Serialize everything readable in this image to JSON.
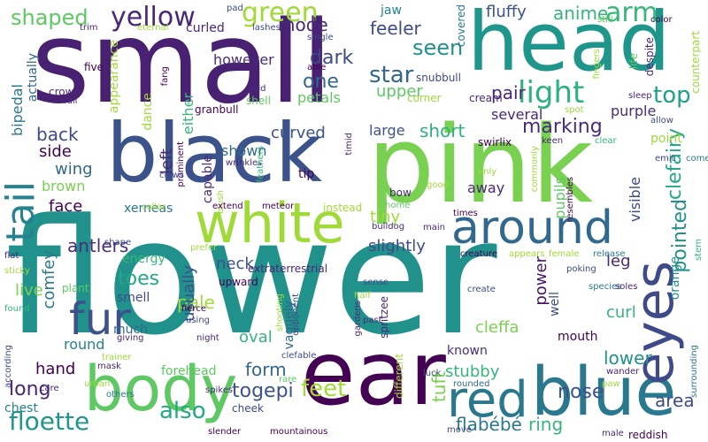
{
  "words": [
    {
      "text": "flower",
      "color": "#21918c"
    },
    {
      "text": "small",
      "color": "#482173"
    },
    {
      "text": "pink",
      "color": "#7ad151"
    },
    {
      "text": "black",
      "color": "#3b528b"
    },
    {
      "text": "head",
      "color": "#1f968b"
    },
    {
      "text": "ear",
      "color": "#440154"
    },
    {
      "text": "body",
      "color": "#5ec962"
    },
    {
      "text": "blue",
      "color": "#2a788e"
    },
    {
      "text": "white",
      "color": "#a0da39"
    },
    {
      "text": "around",
      "color": "#31688e"
    },
    {
      "text": "red",
      "color": "#2a788e"
    },
    {
      "text": "eyes",
      "color": "#3e4a89"
    },
    {
      "text": "fur",
      "color": "#3b528b"
    },
    {
      "text": "tail",
      "color": "#26828e"
    },
    {
      "text": "yellow",
      "color": "#482878"
    },
    {
      "text": "green",
      "color": "#a0da39"
    },
    {
      "text": "arm",
      "color": "#35b779"
    },
    {
      "text": "light",
      "color": "#2db27d"
    },
    {
      "text": "shaped",
      "color": "#5ec962"
    },
    {
      "text": "anime",
      "color": "#35b779"
    },
    {
      "text": "fluffy",
      "color": "#3b528b"
    },
    {
      "text": "top",
      "color": "#1fa187"
    },
    {
      "text": "mode",
      "color": "#482878"
    },
    {
      "text": "dark",
      "color": "#3e4a89"
    },
    {
      "text": "star",
      "color": "#31688e"
    },
    {
      "text": "seen",
      "color": "#21918c"
    },
    {
      "text": "feeler",
      "color": "#3e4a89"
    },
    {
      "text": "one",
      "color": "#31688e"
    },
    {
      "text": "upper",
      "color": "#5ec962"
    },
    {
      "text": "petals",
      "color": "#5ec962"
    },
    {
      "text": "marking",
      "color": "#472d7b"
    },
    {
      "text": "pair",
      "color": "#482878"
    },
    {
      "text": "clefairy",
      "color": "#22a884"
    },
    {
      "text": "pointed",
      "color": "#21918c"
    },
    {
      "text": "back",
      "color": "#3e4a89"
    },
    {
      "text": "curved",
      "color": "#3b528b"
    },
    {
      "text": "short",
      "color": "#2db27d"
    },
    {
      "text": "side",
      "color": "#440154"
    },
    {
      "text": "wing",
      "color": "#31688e"
    },
    {
      "text": "left",
      "color": "#482878"
    },
    {
      "text": "tip",
      "color": "#440154"
    },
    {
      "text": "face",
      "color": "#440154"
    },
    {
      "text": "xerneas",
      "color": "#2a788e"
    },
    {
      "text": "bipedal",
      "color": "#2a788e"
    },
    {
      "text": "antlers",
      "color": "#472d7b"
    },
    {
      "text": "slightly",
      "color": "#3e4a89"
    },
    {
      "text": "energy",
      "color": "#35b779"
    },
    {
      "text": "tiny",
      "color": "#a0da39"
    },
    {
      "text": "neck",
      "color": "#3b528b"
    },
    {
      "text": "toes",
      "color": "#22a884"
    },
    {
      "text": "comfey",
      "color": "#2a788e"
    },
    {
      "text": "power",
      "color": "#481467"
    },
    {
      "text": "cleffa",
      "color": "#7ad151"
    },
    {
      "text": "leg",
      "color": "#482878"
    },
    {
      "text": "orange",
      "color": "#21918c"
    },
    {
      "text": "pale",
      "color": "#a0da39"
    },
    {
      "text": "usually",
      "color": "#3b528b"
    },
    {
      "text": "vaguely",
      "color": "#31688e"
    },
    {
      "text": "smell",
      "color": "#3e4a89"
    },
    {
      "text": "hand",
      "color": "#440154"
    },
    {
      "text": "round",
      "color": "#26828e"
    },
    {
      "text": "oval",
      "color": "#35b779"
    },
    {
      "text": "mouth",
      "color": "#440154"
    },
    {
      "text": "lower",
      "color": "#21918c"
    },
    {
      "text": "long",
      "color": "#482878"
    },
    {
      "text": "forehead",
      "color": "#5ec962"
    },
    {
      "text": "form",
      "color": "#31688e"
    },
    {
      "text": "stubby",
      "color": "#35b779"
    },
    {
      "text": "togepi",
      "color": "#3b528b"
    },
    {
      "text": "feet",
      "color": "#a0da39"
    },
    {
      "text": "also",
      "color": "#22a884"
    },
    {
      "text": "floette",
      "color": "#1f968b"
    },
    {
      "text": "chest",
      "color": "#26828e"
    },
    {
      "text": "tuft",
      "color": "#7ad151"
    },
    {
      "text": "nose",
      "color": "#3b528b"
    },
    {
      "text": "ring",
      "color": "#35b779"
    },
    {
      "text": "flabébé",
      "color": "#2a788e"
    },
    {
      "text": "area",
      "color": "#3e4a89"
    },
    {
      "text": "brown",
      "color": "#7ad151"
    },
    {
      "text": "large",
      "color": "#3b528b"
    },
    {
      "text": "several",
      "color": "#482878"
    },
    {
      "text": "purple",
      "color": "#472d7b"
    },
    {
      "text": "visible",
      "color": "#3e4a89"
    },
    {
      "text": "pupils",
      "color": "#5ec962"
    },
    {
      "text": "live",
      "color": "#7ad151"
    },
    {
      "text": "away",
      "color": "#482878"
    },
    {
      "text": "curl",
      "color": "#35b779"
    },
    {
      "text": "point",
      "color": "#a0da39"
    },
    {
      "text": "shown",
      "color": "#31688e"
    },
    {
      "text": "capable",
      "color": "#472d7b"
    },
    {
      "text": "dance",
      "color": "#a0da39"
    },
    {
      "text": "either",
      "color": "#35b779"
    },
    {
      "text": "however",
      "color": "#472d7b"
    },
    {
      "text": "curled",
      "color": "#482878"
    },
    {
      "text": "actually",
      "color": "#31688e"
    },
    {
      "text": "appearance",
      "color": "#a0da39"
    },
    {
      "text": "jaw",
      "color": "#26828e"
    },
    {
      "text": "covered",
      "color": "#2a788e"
    },
    {
      "text": "much",
      "color": "#31688e"
    },
    {
      "text": "well",
      "color": "#3e4a89"
    },
    {
      "text": "known",
      "color": "#472d7b"
    },
    {
      "text": "cheek",
      "color": "#3e4a89"
    },
    {
      "text": "upward",
      "color": "#440154"
    },
    {
      "text": "extraterrestrial",
      "color": "#482878"
    },
    {
      "text": "spritzee",
      "color": "#482878"
    },
    {
      "text": "plant",
      "color": "#5ec962"
    },
    {
      "text": "shape",
      "color": "#3e4a89"
    },
    {
      "text": "mask",
      "color": "#482878"
    },
    {
      "text": "flat",
      "color": "#472d7b"
    },
    {
      "text": "sticky",
      "color": "#a0da39"
    },
    {
      "text": "found",
      "color": "#35b779"
    },
    {
      "text": "according",
      "color": "#3e4a89"
    },
    {
      "text": "trainer",
      "color": "#a0da39"
    },
    {
      "text": "urban",
      "color": "#a0da39"
    },
    {
      "text": "care",
      "color": "#482878"
    },
    {
      "text": "others",
      "color": "#2a788e"
    },
    {
      "text": "slender",
      "color": "#440154"
    },
    {
      "text": "mountainous",
      "color": "#440154"
    },
    {
      "text": "different",
      "color": "#a0da39"
    },
    {
      "text": "move",
      "color": "#3e4a89"
    },
    {
      "text": "rounded",
      "color": "#31688e"
    },
    {
      "text": "luck",
      "color": "#3e4a89"
    },
    {
      "text": "male",
      "color": "#472d7b"
    },
    {
      "text": "reddish",
      "color": "#440154"
    },
    {
      "text": "surrounding",
      "color": "#2a788e"
    },
    {
      "text": "wander",
      "color": "#482878"
    },
    {
      "text": "paw",
      "color": "#a0da39"
    },
    {
      "text": "spikes",
      "color": "#472d7b"
    },
    {
      "text": "clefable",
      "color": "#3e4a89"
    },
    {
      "text": "rare",
      "color": "#5ec962"
    },
    {
      "text": "giving",
      "color": "#482878"
    },
    {
      "text": "fierce",
      "color": "#440154"
    },
    {
      "text": "night",
      "color": "#482878"
    },
    {
      "text": "prefer",
      "color": "#a0da39"
    },
    {
      "text": "using",
      "color": "#3e4a89"
    },
    {
      "text": "shooting",
      "color": "#a0da39"
    },
    {
      "text": "opponent",
      "color": "#3e4a89"
    },
    {
      "text": "gardens",
      "color": "#482878"
    },
    {
      "text": "half",
      "color": "#a0da39"
    },
    {
      "text": "past",
      "color": "#472d7b"
    },
    {
      "text": "sense",
      "color": "#3e4a89"
    },
    {
      "text": "creature",
      "color": "#440154"
    },
    {
      "text": "appears",
      "color": "#a0da39"
    },
    {
      "text": "female",
      "color": "#a0da39"
    },
    {
      "text": "release",
      "color": "#2a788e"
    },
    {
      "text": "species",
      "color": "#2a788e"
    },
    {
      "text": "poking",
      "color": "#3e4a89"
    },
    {
      "text": "soles",
      "color": "#482878"
    },
    {
      "text": "create",
      "color": "#3e4a89"
    },
    {
      "text": "main",
      "color": "#482878"
    },
    {
      "text": "times",
      "color": "#440154"
    },
    {
      "text": "stem",
      "color": "#35b779"
    },
    {
      "text": "counterpart",
      "color": "#a0da39"
    },
    {
      "text": "allow",
      "color": "#3e4a89"
    },
    {
      "text": "emit",
      "color": "#3e4a89"
    },
    {
      "text": "come",
      "color": "#2a788e"
    },
    {
      "text": "life",
      "color": "#5ec962"
    },
    {
      "text": "despite",
      "color": "#482878"
    },
    {
      "text": "color",
      "color": "#440154"
    },
    {
      "text": "still",
      "color": "#5ec962"
    },
    {
      "text": "sleep",
      "color": "#482878"
    },
    {
      "text": "fingers",
      "color": "#a0da39"
    },
    {
      "text": "keen",
      "color": "#482878"
    },
    {
      "text": "clear",
      "color": "#35b779"
    },
    {
      "text": "spot",
      "color": "#a0da39"
    },
    {
      "text": "swirlix",
      "color": "#440154"
    },
    {
      "text": "commonly",
      "color": "#a0da39"
    },
    {
      "text": "only",
      "color": "#a0da39"
    },
    {
      "text": "resembles",
      "color": "#440154"
    },
    {
      "text": "good",
      "color": "#a0da39"
    },
    {
      "text": "instead",
      "color": "#a0da39"
    },
    {
      "text": "home",
      "color": "#5ec962"
    },
    {
      "text": "bulldog",
      "color": "#472d7b"
    },
    {
      "text": "cream",
      "color": "#482878"
    },
    {
      "text": "corner",
      "color": "#a0da39"
    },
    {
      "text": "snubbull",
      "color": "#3e4a89"
    },
    {
      "text": "shell",
      "color": "#5ec962"
    },
    {
      "text": "said",
      "color": "#482878"
    },
    {
      "text": "granbull",
      "color": "#440154"
    },
    {
      "text": "timid",
      "color": "#482878"
    },
    {
      "text": "bow",
      "color": "#482878"
    },
    {
      "text": "blush",
      "color": "#a0da39"
    },
    {
      "text": "prominent",
      "color": "#440154"
    },
    {
      "text": "wrinkles",
      "color": "#482878"
    },
    {
      "text": "meteor",
      "color": "#440154"
    },
    {
      "text": "feathers",
      "color": "#35b779"
    },
    {
      "text": "extend",
      "color": "#440154"
    },
    {
      "text": "collar",
      "color": "#a0da39"
    },
    {
      "text": "claws",
      "color": "#3e4a89"
    },
    {
      "text": "fang",
      "color": "#440154"
    },
    {
      "text": "full",
      "color": "#482878"
    },
    {
      "text": "crown",
      "color": "#482878"
    },
    {
      "text": "five",
      "color": "#440154"
    },
    {
      "text": "trim",
      "color": "#482878"
    },
    {
      "text": "eternal",
      "color": "#a0da39"
    },
    {
      "text": "lashes",
      "color": "#3e4a89"
    },
    {
      "text": "pad",
      "color": "#3e4a89"
    },
    {
      "text": "single",
      "color": "#3e4a89"
    },
    {
      "text": "able",
      "color": "#440154"
    }
  ]
}
